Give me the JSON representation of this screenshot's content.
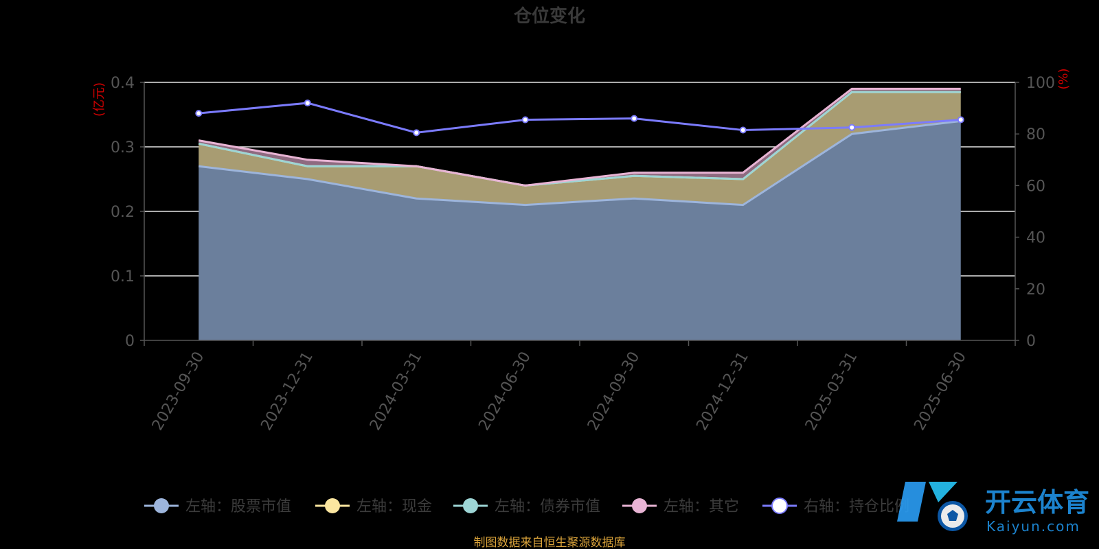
{
  "chart_data": {
    "type": "area",
    "title": "仓位变化",
    "y_left_unit": "(亿元)",
    "y_right_unit": "(%)",
    "categories": [
      "2023-09-30",
      "2023-12-31",
      "2024-03-31",
      "2024-06-30",
      "2024-09-30",
      "2024-12-31",
      "2025-03-31",
      "2025-06-30"
    ],
    "y_left_lim": [
      0,
      0.4
    ],
    "y_left_ticks": [
      "0",
      "0.1",
      "0.2",
      "0.3",
      "0.4"
    ],
    "y_right_lim": [
      0,
      100
    ],
    "y_right_ticks": [
      "0",
      "20",
      "40",
      "60",
      "80",
      "100"
    ],
    "grid": true,
    "legend_position": "bottom",
    "series": [
      {
        "name": "左轴：股票市值",
        "axis": "left",
        "stacked": true,
        "color": "#9db5dc",
        "fill": "#6b7f9c",
        "values": [
          0.27,
          0.25,
          0.22,
          0.21,
          0.22,
          0.21,
          0.32,
          0.34
        ]
      },
      {
        "name": "左轴：现金",
        "axis": "left",
        "stacked": true,
        "color": "#fbe6a0",
        "fill": "#a89c72",
        "values": [
          0.035,
          0.02,
          0.05,
          0.03,
          0.035,
          0.04,
          0.065,
          0.045
        ]
      },
      {
        "name": "左轴：债券市值",
        "axis": "left",
        "stacked": true,
        "color": "#9dd5d5",
        "fill": "#7f9a95",
        "values": [
          0.0,
          0.0,
          0.0,
          0.0,
          0.0,
          0.0,
          0.0,
          0.0
        ]
      },
      {
        "name": "左轴：其它",
        "axis": "left",
        "stacked": true,
        "color": "#e8b4d4",
        "fill": "#8e6a80",
        "values": [
          0.005,
          0.01,
          0.0,
          0.0,
          0.005,
          0.01,
          0.005,
          0.005
        ]
      },
      {
        "name": "右轴：持仓比例",
        "axis": "right",
        "stacked": false,
        "color": "#7b7bff",
        "fill": "#ffffff",
        "values": [
          88.0,
          92.0,
          80.5,
          85.5,
          86.0,
          81.5,
          82.5,
          85.5
        ]
      }
    ]
  },
  "source_note": "制图数据来自恒生聚源数据库",
  "watermark": {
    "main": "开云体育",
    "sub": "Kaiyun.com",
    "logo_letter": "K"
  }
}
